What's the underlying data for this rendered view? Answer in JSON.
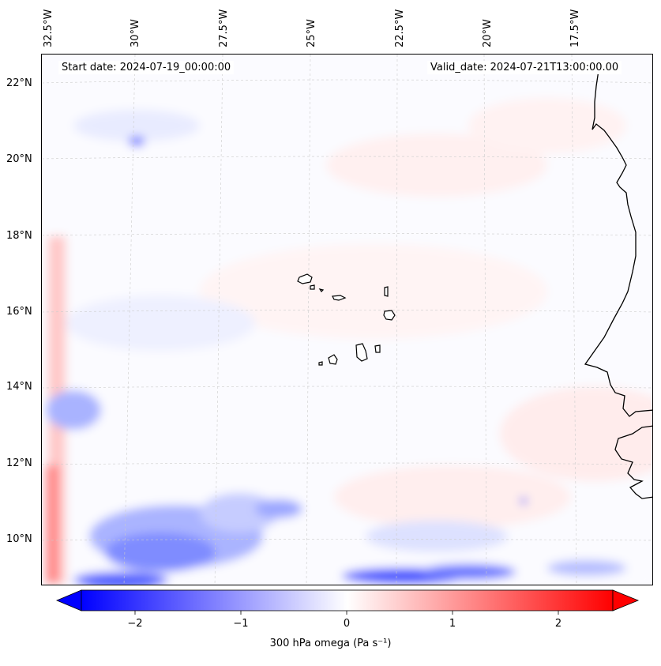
{
  "map": {
    "start_date": "Start date: 2024-07-19_00:00:00",
    "valid_date": "Valid_date: 2024-07-21T13:00:00.00",
    "lon_labels": [
      "32.5°W",
      "30°W",
      "27.5°W",
      "25°W",
      "22.5°W",
      "20°W",
      "17.5°W"
    ],
    "lat_labels": [
      "22°N",
      "20°N",
      "18°N",
      "16°N",
      "14°N",
      "12°N",
      "10°N"
    ],
    "field": "300 hPa omega"
  },
  "colorbar": {
    "label": "300 hPa omega (Pa s⁻¹)",
    "ticks": [
      "−2",
      "−1",
      "0",
      "1",
      "2"
    ],
    "range": [
      -2.7,
      2.7
    ],
    "low_color": "#0000ff",
    "mid_color": "#ffffff",
    "high_color": "#ff0000"
  }
}
